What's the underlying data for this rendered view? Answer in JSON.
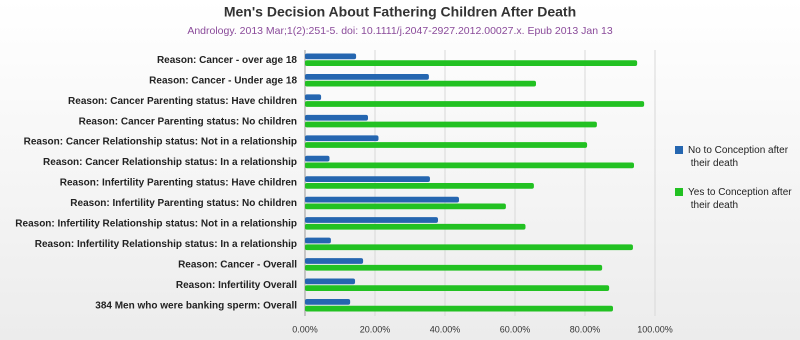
{
  "chart_data": {
    "type": "hbar",
    "title": "Men's Decision About Fathering Children After Death",
    "subtitle": "Andrology. 2013 Mar;1(2):251-5. doi: 10.1111/j.2047-2927.2012.00027.x. Epub 2013 Jan 13",
    "categories": [
      "Reason: Cancer - over age 18",
      "Reason: Cancer - Under age 18",
      "Reason: Cancer Parenting status: Have children",
      "Reason: Cancer  Parenting status: No children",
      "Reason: Cancer Relationship status: Not in a relationship",
      "Reason: Cancer Relationship status: In a relationship",
      "Reason: Infertility Parenting status: Have children",
      "Reason: Infertility  Parenting status: No children",
      "Reason: Infertility Relationship status: Not in a relationship",
      "Reason: Infertility Relationship status: In a relationship",
      "Reason: Cancer - Overall",
      "Reason: Infertility Overall",
      "384 Men who were banking sperm: Overall"
    ],
    "series": [
      {
        "name": "No to Conception after their death",
        "color": "#2566b0",
        "values": [
          14.6,
          35.4,
          4.6,
          18,
          21,
          7,
          35.7,
          44,
          38,
          7.4,
          16.6,
          14.3,
          12.9
        ]
      },
      {
        "name": "Yes to Conception after their death",
        "color": "#22c122",
        "values": [
          94.9,
          66,
          96.9,
          83.4,
          80.6,
          94,
          65.4,
          57.4,
          63,
          93.7,
          84.9,
          86.9,
          88
        ]
      }
    ],
    "xlim": [
      0,
      100
    ],
    "xticks": [
      {
        "value": 0,
        "label": "0.00%"
      },
      {
        "value": 20,
        "label": "20.00%"
      },
      {
        "value": 40,
        "label": "40.00%"
      },
      {
        "value": 60,
        "label": "60.00%"
      },
      {
        "value": 80,
        "label": "80.00%"
      },
      {
        "value": 100,
        "label": "100.00%"
      }
    ],
    "grid": true
  }
}
